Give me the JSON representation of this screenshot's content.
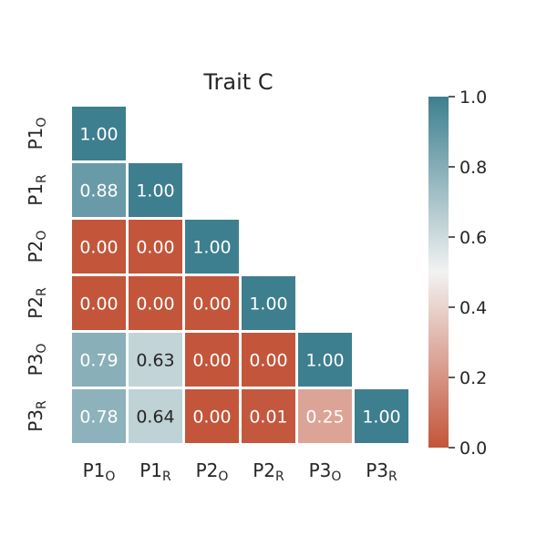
{
  "chart_data": {
    "type": "heatmap",
    "title": "Trait C",
    "layout": "lower-triangle",
    "categories": [
      {
        "base": "P1",
        "sub": "O"
      },
      {
        "base": "P1",
        "sub": "R"
      },
      {
        "base": "P2",
        "sub": "O"
      },
      {
        "base": "P2",
        "sub": "R"
      },
      {
        "base": "P3",
        "sub": "O"
      },
      {
        "base": "P3",
        "sub": "R"
      }
    ],
    "values": [
      [
        1.0
      ],
      [
        0.88,
        1.0
      ],
      [
        0.0,
        0.0,
        1.0
      ],
      [
        0.0,
        0.0,
        0.0,
        1.0
      ],
      [
        0.79,
        0.63,
        0.0,
        0.0,
        1.0
      ],
      [
        0.78,
        0.64,
        0.0,
        0.01,
        0.25,
        1.0
      ]
    ],
    "annotation_format": "0.00",
    "colorbar": {
      "range": [
        0.0,
        1.0
      ],
      "ticks": [
        "0.0",
        "0.2",
        "0.4",
        "0.6",
        "0.8",
        "1.0"
      ],
      "colors": {
        "low": "#c3553a",
        "mid": "#f2f2f2",
        "high": "#3d7f8f"
      }
    },
    "grid": false
  }
}
